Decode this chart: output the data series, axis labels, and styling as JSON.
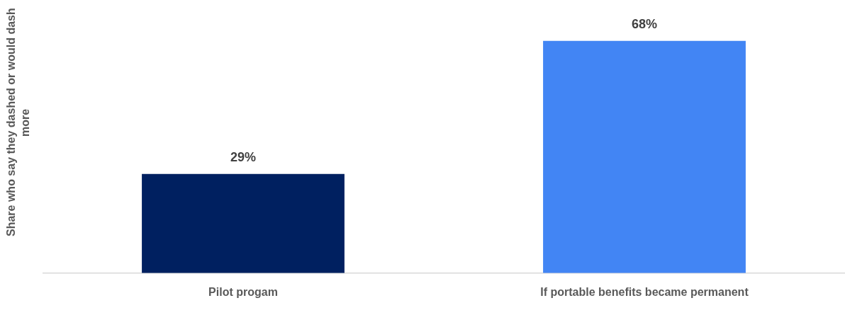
{
  "chart_data": {
    "type": "bar",
    "ylabel": "Share who say they dashed or would dash more",
    "categories": [
      "Pilot progam",
      "If portable benefits became permanent"
    ],
    "values": [
      29,
      68
    ],
    "colors": [
      "#002060",
      "#4285f4"
    ],
    "data_labels": true,
    "value_labels": [
      "29%",
      "68%"
    ],
    "grid": false,
    "legend": false
  }
}
